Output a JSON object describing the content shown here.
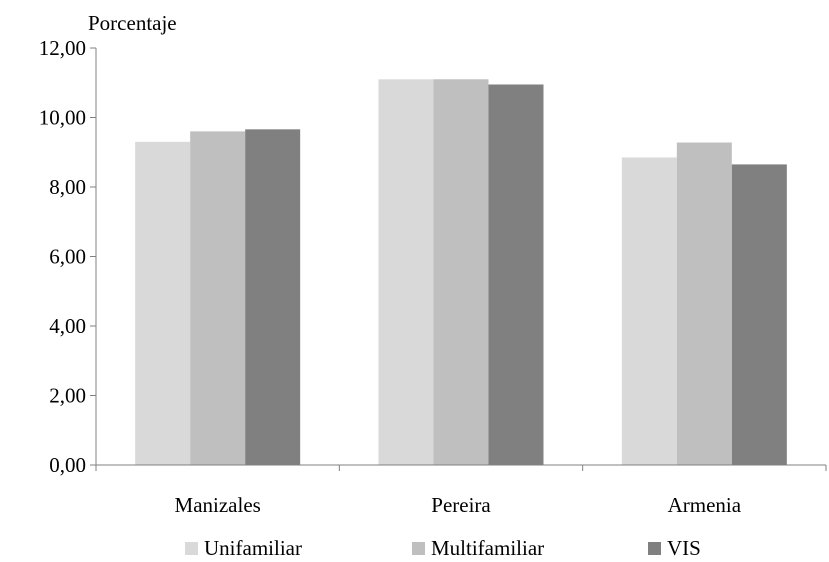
{
  "chart_data": {
    "type": "bar",
    "ylabel": "Porcentaje",
    "categories": [
      "Manizales",
      "Pereira",
      "Armenia"
    ],
    "series": [
      {
        "name": "Unifamiliar",
        "values": [
          9.3,
          11.1,
          8.85
        ],
        "color": "#d9d9d9"
      },
      {
        "name": "Multifamiliar",
        "values": [
          9.6,
          11.1,
          9.28
        ],
        "color": "#bfbfbf"
      },
      {
        "name": "VIS",
        "values": [
          9.66,
          10.95,
          8.65
        ],
        "color": "#808080"
      }
    ],
    "ylim": [
      0,
      12
    ],
    "yticks": [
      "0,00",
      "2,00",
      "4,00",
      "6,00",
      "8,00",
      "10,00",
      "12,00"
    ],
    "grid": false,
    "legend_position": "bottom"
  }
}
